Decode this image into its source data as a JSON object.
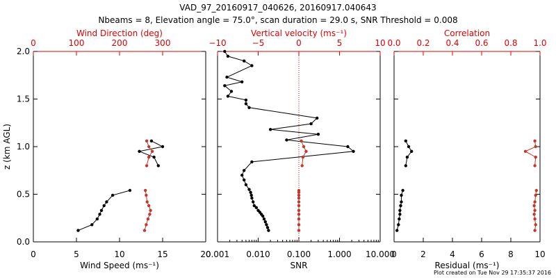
{
  "title_line1": "VAD_97_20160917_040626, 20160917.040643",
  "title_line2": "Nbeams = 8, Elevation angle = 75.0°, scan duration = 29.0 s, SNR Threshold = 0.008",
  "footer": "Plot created on Tue Nov 29 17:35:37 2016",
  "colors": {
    "primary": "#000000",
    "accent": "#c0392b",
    "top_axis": "#dd0000"
  },
  "chart_data": [
    {
      "type": "line",
      "ylabel": "z (km AGL)",
      "ylim": [
        0,
        2.0
      ],
      "yticks": [
        0.0,
        0.5,
        1.0,
        1.5,
        2.0
      ],
      "ytick_labels": [
        "0.0",
        "0.5",
        "1.0",
        "1.5",
        "2.0"
      ],
      "xlabel": "Wind Speed (ms⁻¹)",
      "xlim": [
        0,
        20
      ],
      "xticks": [
        0,
        5,
        10,
        15,
        20
      ],
      "xtick_labels": [
        "0",
        "5",
        "10",
        "15",
        "20"
      ],
      "top_label": "Wind Direction (deg)",
      "top_lim": [
        0,
        400
      ],
      "top_ticks": [
        0,
        100,
        200,
        300
      ],
      "top_tick_labels": [
        "0",
        "100",
        "200",
        "300"
      ],
      "series": [
        {
          "axis": "bottom",
          "color": "#000000",
          "segments": [
            {
              "x": [
                5.2,
                6.8,
                7.4,
                7.7,
                7.9,
                8.2,
                8.5,
                9.2,
                11.2
              ],
              "y": [
                0.12,
                0.18,
                0.24,
                0.29,
                0.33,
                0.38,
                0.42,
                0.49,
                0.54
              ]
            },
            {
              "x": [
                13.7,
                15.0,
                12.3,
                14.0,
                14.5
              ],
              "y": [
                1.06,
                1.0,
                0.95,
                0.89,
                0.8
              ]
            }
          ]
        },
        {
          "axis": "top",
          "color": "#c0392b",
          "segments": [
            {
              "x": [
                258,
                262,
                266,
                270,
                272,
                268,
                264,
                262,
                260
              ],
              "y": [
                0.12,
                0.18,
                0.24,
                0.29,
                0.33,
                0.38,
                0.42,
                0.49,
                0.54
              ]
            },
            {
              "x": [
                263,
                268,
                276,
                268,
                263
              ],
              "y": [
                1.06,
                1.0,
                0.95,
                0.89,
                0.8
              ]
            }
          ]
        }
      ]
    },
    {
      "type": "line",
      "ylim": [
        0,
        2.0
      ],
      "xlabel": "SNR",
      "xscale": "log",
      "xlim": [
        0.001,
        10
      ],
      "xticks": [
        0.001,
        0.01,
        0.1,
        1,
        10
      ],
      "xtick_labels": [
        "0.001",
        "0.010",
        "0.100",
        "1.000",
        "10.000"
      ],
      "top_label": "Vertical velocity (ms⁻¹)",
      "top_lim": [
        -10,
        10
      ],
      "top_ticks": [
        -10,
        -5,
        0,
        5,
        10
      ],
      "top_tick_labels": [
        "−10",
        "−5",
        "0",
        "5",
        "10"
      ],
      "zero_line": {
        "axis": "top",
        "value": 0,
        "style": "dotted"
      },
      "series": [
        {
          "axis": "bottom",
          "color": "#000000",
          "segments": [
            {
              "x": [
                0.018,
                0.017,
                0.016,
                0.015,
                0.014,
                0.013,
                0.012,
                0.011,
                0.01,
                0.009,
                0.008,
                0.0075,
                0.007,
                0.0068,
                0.0065,
                0.006,
                0.005,
                0.0045,
                0.004,
                0.0045,
                0.007,
                2.2,
                1.6,
                0.05,
                0.3,
                0.02,
                0.2,
                0.28,
                0.006,
                0.005,
                0.005,
                0.0018,
                0.0022,
                0.0015,
                0.004,
                0.0017,
                0.007,
                0.0045,
                0.0018,
                0.0015
              ],
              "y": [
                0.12,
                0.15,
                0.18,
                0.21,
                0.24,
                0.27,
                0.29,
                0.31,
                0.33,
                0.36,
                0.38,
                0.42,
                0.46,
                0.49,
                0.52,
                0.55,
                0.6,
                0.65,
                0.7,
                0.75,
                0.84,
                0.95,
                1.0,
                1.07,
                1.13,
                1.18,
                1.24,
                1.3,
                1.41,
                1.45,
                1.49,
                1.53,
                1.58,
                1.64,
                1.68,
                1.73,
                1.85,
                1.9,
                1.95,
                2.0
              ]
            }
          ]
        },
        {
          "axis": "top",
          "color": "#c0392b",
          "segments": [
            {
              "x": [
                0,
                0,
                0,
                0,
                0,
                0,
                0,
                0,
                0,
                0,
                0
              ],
              "y": [
                0.12,
                0.18,
                0.24,
                0.29,
                0.33,
                0.38,
                0.42,
                0.46,
                0.49,
                0.52,
                0.54
              ]
            },
            {
              "x": [
                0.3,
                0.6,
                0.9,
                0.5,
                0.4
              ],
              "y": [
                1.06,
                1.0,
                0.95,
                0.89,
                0.8
              ]
            }
          ]
        }
      ]
    },
    {
      "type": "line",
      "ylim": [
        0,
        2.0
      ],
      "xlabel": "Residual (ms⁻¹)",
      "xlim": [
        0,
        10
      ],
      "xticks": [
        0,
        2,
        4,
        6,
        8,
        10
      ],
      "xtick_labels": [
        "0",
        "2",
        "4",
        "6",
        "8",
        "10"
      ],
      "top_label": "Correlation",
      "top_lim": [
        0,
        1.0
      ],
      "top_ticks": [
        0.0,
        0.2,
        0.4,
        0.6,
        0.8,
        1.0
      ],
      "top_tick_labels": [
        "0.0",
        "0.2",
        "0.4",
        "0.6",
        "0.8",
        "1.0"
      ],
      "series": [
        {
          "axis": "bottom",
          "color": "#000000",
          "segments": [
            {
              "x": [
                0.2,
                0.3,
                0.35,
                0.4,
                0.4,
                0.45,
                0.5,
                0.5,
                0.6
              ],
              "y": [
                0.12,
                0.18,
                0.24,
                0.29,
                0.33,
                0.38,
                0.42,
                0.49,
                0.54
              ]
            },
            {
              "x": [
                0.8,
                1.0,
                1.2,
                0.9,
                0.8
              ],
              "y": [
                1.06,
                1.0,
                0.95,
                0.89,
                0.8
              ]
            }
          ]
        },
        {
          "axis": "top",
          "color": "#c0392b",
          "segments": [
            {
              "x": [
                0.965,
                0.97,
                0.965,
                0.96,
                0.965,
                0.96,
                0.965,
                0.97,
                0.975
              ],
              "y": [
                0.12,
                0.18,
                0.24,
                0.29,
                0.33,
                0.38,
                0.42,
                0.49,
                0.54
              ]
            },
            {
              "x": [
                0.965,
                0.97,
                0.9,
                0.97,
                0.965
              ],
              "y": [
                1.06,
                1.0,
                0.95,
                0.89,
                0.8
              ]
            }
          ]
        }
      ]
    }
  ]
}
